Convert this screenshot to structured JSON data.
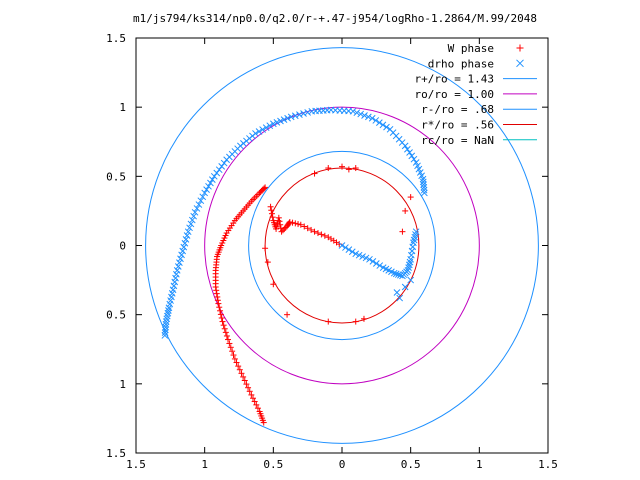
{
  "chart_data": {
    "type": "scatter",
    "title": "m1/js794/ks314/np0.0/q2.0/r-+.47-j954/logRho-1.2864/M.99/2048",
    "xlim": [
      -1.5,
      1.5
    ],
    "ylim": [
      -1.5,
      1.5
    ],
    "x_ticks": [
      {
        "value": -1.5,
        "label": "1.5"
      },
      {
        "value": -1,
        "label": "1"
      },
      {
        "value": -0.5,
        "label": "0.5"
      },
      {
        "value": 0,
        "label": "0"
      },
      {
        "value": 0.5,
        "label": "0.5"
      },
      {
        "value": 1,
        "label": "1"
      },
      {
        "value": 1.5,
        "label": "1.5"
      }
    ],
    "y_ticks": [
      {
        "value": 1.5,
        "label": "1.5"
      },
      {
        "value": 1,
        "label": "1"
      },
      {
        "value": 0.5,
        "label": "0.5"
      },
      {
        "value": 0,
        "label": "0"
      },
      {
        "value": -0.5,
        "label": "0.5"
      },
      {
        "value": -1,
        "label": "1"
      },
      {
        "value": -1.5,
        "label": "1.5"
      }
    ],
    "grid": false,
    "legend_position": "top-right",
    "series": [
      {
        "name": "W phase",
        "marker": "plus",
        "color": "#ff0000",
        "points": [
          [
            -0.56,
            0.42
          ],
          [
            -0.6,
            0.38
          ],
          [
            -0.66,
            0.32
          ],
          [
            -0.72,
            0.25
          ],
          [
            -0.78,
            0.18
          ],
          [
            -0.84,
            0.09
          ],
          [
            -0.88,
            0.0
          ],
          [
            -0.91,
            -0.08
          ],
          [
            -0.92,
            -0.18
          ],
          [
            -0.92,
            -0.3
          ],
          [
            -0.9,
            -0.42
          ],
          [
            -0.87,
            -0.55
          ],
          [
            -0.83,
            -0.68
          ],
          [
            -0.78,
            -0.82
          ],
          [
            -0.72,
            -0.95
          ],
          [
            -0.66,
            -1.08
          ],
          [
            -0.6,
            -1.2
          ],
          [
            -0.57,
            -1.28
          ],
          [
            -0.52,
            0.28
          ],
          [
            -0.5,
            0.18
          ],
          [
            -0.48,
            0.12
          ],
          [
            -0.46,
            0.2
          ],
          [
            -0.44,
            0.1
          ],
          [
            -0.4,
            0.14
          ],
          [
            -0.38,
            0.17
          ],
          [
            -0.3,
            0.15
          ],
          [
            -0.2,
            0.1
          ],
          [
            -0.1,
            0.06
          ],
          [
            -0.02,
            0.01
          ],
          [
            -0.56,
            -0.02
          ],
          [
            -0.54,
            -0.12
          ],
          [
            -0.5,
            -0.28
          ],
          [
            -0.4,
            -0.5
          ],
          [
            -0.1,
            -0.55
          ],
          [
            0.1,
            -0.55
          ],
          [
            0.16,
            -0.53
          ],
          [
            0.46,
            0.25
          ],
          [
            0.5,
            0.35
          ],
          [
            0.44,
            0.1
          ],
          [
            -0.2,
            0.52
          ],
          [
            -0.1,
            0.56
          ],
          [
            0.0,
            0.57
          ],
          [
            0.1,
            0.56
          ],
          [
            0.05,
            0.55
          ]
        ]
      },
      {
        "name": "drho phase",
        "marker": "cross",
        "color": "#1e90ff",
        "points": [
          [
            -1.29,
            -0.65
          ],
          [
            -1.28,
            -0.55
          ],
          [
            -1.26,
            -0.45
          ],
          [
            -1.23,
            -0.32
          ],
          [
            -1.2,
            -0.18
          ],
          [
            -1.16,
            -0.04
          ],
          [
            -1.12,
            0.1
          ],
          [
            -1.07,
            0.24
          ],
          [
            -1.0,
            0.38
          ],
          [
            -0.93,
            0.5
          ],
          [
            -0.84,
            0.62
          ],
          [
            -0.74,
            0.72
          ],
          [
            -0.63,
            0.81
          ],
          [
            -0.5,
            0.88
          ],
          [
            -0.37,
            0.93
          ],
          [
            -0.22,
            0.97
          ],
          [
            -0.08,
            0.98
          ],
          [
            0.08,
            0.97
          ],
          [
            0.22,
            0.92
          ],
          [
            0.35,
            0.84
          ],
          [
            0.46,
            0.72
          ],
          [
            0.54,
            0.6
          ],
          [
            0.59,
            0.48
          ],
          [
            0.6,
            0.38
          ],
          [
            0.0,
            0.0
          ],
          [
            0.1,
            -0.06
          ],
          [
            0.2,
            -0.1
          ],
          [
            0.3,
            -0.16
          ],
          [
            0.38,
            -0.2
          ],
          [
            0.44,
            -0.22
          ],
          [
            0.48,
            -0.18
          ],
          [
            0.5,
            -0.1
          ],
          [
            0.52,
            0.02
          ],
          [
            0.54,
            0.1
          ],
          [
            0.46,
            -0.3
          ],
          [
            0.42,
            -0.38
          ],
          [
            0.4,
            -0.34
          ],
          [
            0.5,
            -0.25
          ]
        ]
      }
    ],
    "circles": [
      {
        "label": "r+/ro = 1.43",
        "radius": 1.43,
        "color": "#1e90ff"
      },
      {
        "label": "ro/ro = 1.00",
        "radius": 1.0,
        "color": "#c000c0"
      },
      {
        "label": "r-/ro = .68",
        "radius": 0.68,
        "color": "#1e90ff"
      },
      {
        "label": "r*/ro = .56",
        "radius": 0.56,
        "color": "#e00000"
      },
      {
        "label": "rc/ro = NaN",
        "radius": null,
        "color": "#00c0c0"
      }
    ]
  }
}
